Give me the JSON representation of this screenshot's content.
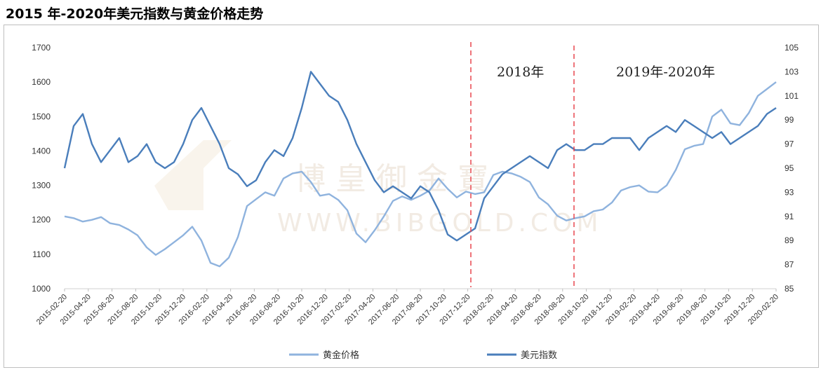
{
  "title": "2015 年-2020年美元指数与黄金价格走势",
  "chart_data": {
    "type": "line",
    "title": "2015 年-2020年美元指数与黄金价格走势",
    "xlabel": "",
    "ylabel": "",
    "y_left": {
      "min": 1000,
      "max": 1700,
      "ticks": [
        "1000",
        "1100",
        "1200",
        "1300",
        "1400",
        "1500",
        "1600",
        "1700"
      ]
    },
    "y_right": {
      "min": 85,
      "max": 105,
      "ticks": [
        "85",
        "87",
        "89",
        "91",
        "93",
        "95",
        "97",
        "99",
        "101",
        "103",
        "105"
      ]
    },
    "x_tick_labels": [
      "2015-02-20",
      "2015-04-20",
      "2015-06-20",
      "2015-08-20",
      "2015-10-20",
      "2015-12-20",
      "2016-02-20",
      "2016-04-20",
      "2016-06-20",
      "2016-08-20",
      "2016-10-20",
      "2016-12-20",
      "2017-02-20",
      "2017-04-20",
      "2017-06-20",
      "2017-08-20",
      "2017-10-20",
      "2017-12-20",
      "2018-02-20",
      "2018-04-20",
      "2018-06-20",
      "2018-08-20",
      "2018-10-20",
      "2018-12-20",
      "2019-02-20",
      "2019-04-20",
      "2019-06-20",
      "2019-08-20",
      "2019-10-20",
      "2019-12-20",
      "2020-02-20"
    ],
    "series": [
      {
        "name": "黄金价格",
        "axis": "left",
        "color": "#8FB3DE",
        "values": [
          1210,
          1205,
          1195,
          1200,
          1208,
          1190,
          1185,
          1172,
          1155,
          1120,
          1098,
          1115,
          1135,
          1155,
          1180,
          1140,
          1075,
          1065,
          1090,
          1150,
          1240,
          1260,
          1280,
          1270,
          1320,
          1335,
          1340,
          1310,
          1270,
          1275,
          1258,
          1228,
          1160,
          1135,
          1170,
          1210,
          1255,
          1268,
          1258,
          1270,
          1285,
          1320,
          1290,
          1265,
          1282,
          1275,
          1280,
          1330,
          1340,
          1335,
          1325,
          1310,
          1265,
          1245,
          1212,
          1198,
          1205,
          1210,
          1225,
          1230,
          1250,
          1285,
          1295,
          1300,
          1282,
          1280,
          1300,
          1345,
          1405,
          1415,
          1420,
          1500,
          1520,
          1480,
          1475,
          1510,
          1560,
          1580,
          1600
        ]
      },
      {
        "name": "美元指数",
        "axis": "right",
        "color": "#4A7EBB",
        "values": [
          95.0,
          98.5,
          99.5,
          97.0,
          95.5,
          96.5,
          97.5,
          95.5,
          96.0,
          97.0,
          95.5,
          95.0,
          95.5,
          97.0,
          99.0,
          100.0,
          98.5,
          97.0,
          95.0,
          94.5,
          93.5,
          94.0,
          95.5,
          96.5,
          96.0,
          97.5,
          100.0,
          103.0,
          102.0,
          101.0,
          100.5,
          99.0,
          97.0,
          95.5,
          94.0,
          93.0,
          93.5,
          93.0,
          92.5,
          93.5,
          93.0,
          91.5,
          89.5,
          89.0,
          89.5,
          90.0,
          92.5,
          93.5,
          94.5,
          95.0,
          95.5,
          96.0,
          95.5,
          95.0,
          96.5,
          97.0,
          96.5,
          96.5,
          97.0,
          97.0,
          97.5,
          97.5,
          97.5,
          96.5,
          97.5,
          98.0,
          98.5,
          98.0,
          99.0,
          98.5,
          98.0,
          97.5,
          98.0,
          97.0,
          97.5,
          98.0,
          98.5,
          99.5,
          100.0
        ]
      }
    ],
    "annotations": [
      "2018年",
      "2019年-2020年"
    ],
    "legend_position": "bottom"
  },
  "watermark": {
    "cn": "博 皇 御 金 寶",
    "en": "WWW.BIBGOLD.COM"
  }
}
